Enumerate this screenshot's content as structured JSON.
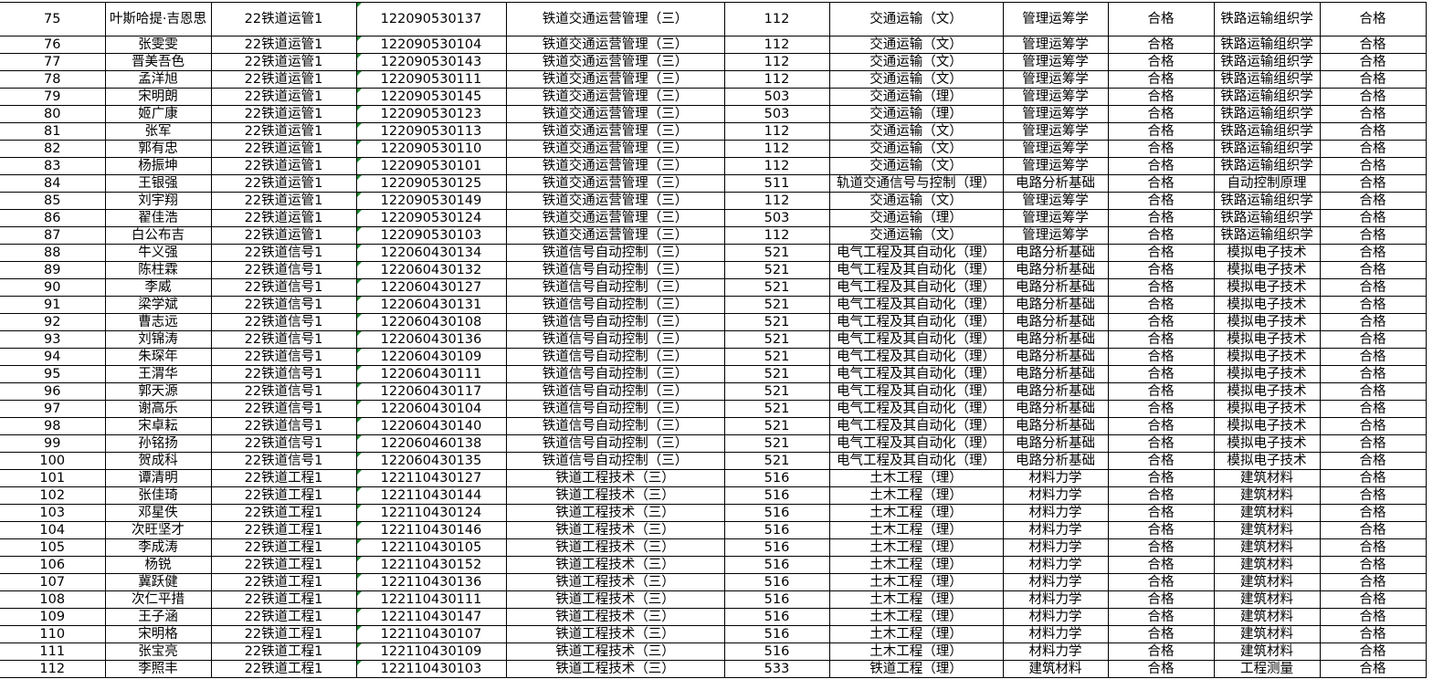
{
  "colors": {
    "grid": "#000000",
    "text_indicator": "#1a8a2a"
  },
  "rows": [
    [
      "75",
      "叶斯哈提·吉恩思",
      "22铁道运管1",
      "122090530137",
      "铁道交通运营管理（三）",
      "112",
      "交通运输（文）",
      "管理运筹学",
      "合格",
      "铁路运输组织学",
      "合格"
    ],
    [
      "76",
      "张雯雯",
      "22铁道运管1",
      "122090530104",
      "铁道交通运营管理（三）",
      "112",
      "交通运输（文）",
      "管理运筹学",
      "合格",
      "铁路运输组织学",
      "合格"
    ],
    [
      "77",
      "晋美吾色",
      "22铁道运管1",
      "122090530143",
      "铁道交通运营管理（三）",
      "112",
      "交通运输（文）",
      "管理运筹学",
      "合格",
      "铁路运输组织学",
      "合格"
    ],
    [
      "78",
      "孟洋旭",
      "22铁道运管1",
      "122090530111",
      "铁道交通运营管理（三）",
      "112",
      "交通运输（文）",
      "管理运筹学",
      "合格",
      "铁路运输组织学",
      "合格"
    ],
    [
      "79",
      "宋明朗",
      "22铁道运管1",
      "122090530145",
      "铁道交通运营管理（三）",
      "503",
      "交通运输（理）",
      "管理运筹学",
      "合格",
      "铁路运输组织学",
      "合格"
    ],
    [
      "80",
      "姬广康",
      "22铁道运管1",
      "122090530123",
      "铁道交通运营管理（三）",
      "503",
      "交通运输（理）",
      "管理运筹学",
      "合格",
      "铁路运输组织学",
      "合格"
    ],
    [
      "81",
      "张军",
      "22铁道运管1",
      "122090530113",
      "铁道交通运营管理（三）",
      "112",
      "交通运输（文）",
      "管理运筹学",
      "合格",
      "铁路运输组织学",
      "合格"
    ],
    [
      "82",
      "郭有忠",
      "22铁道运管1",
      "122090530110",
      "铁道交通运营管理（三）",
      "112",
      "交通运输（文）",
      "管理运筹学",
      "合格",
      "铁路运输组织学",
      "合格"
    ],
    [
      "83",
      "杨振坤",
      "22铁道运管1",
      "122090530101",
      "铁道交通运营管理（三）",
      "112",
      "交通运输（文）",
      "管理运筹学",
      "合格",
      "铁路运输组织学",
      "合格"
    ],
    [
      "84",
      "王银强",
      "22铁道运管1",
      "122090530125",
      "铁道交通运营管理（三）",
      "511",
      "轨道交通信号与控制（理）",
      "电路分析基础",
      "合格",
      "自动控制原理",
      "合格"
    ],
    [
      "85",
      "刘宇翔",
      "22铁道运管1",
      "122090530149",
      "铁道交通运营管理（三）",
      "112",
      "交通运输（文）",
      "管理运筹学",
      "合格",
      "铁路运输组织学",
      "合格"
    ],
    [
      "86",
      "翟佳浩",
      "22铁道运管1",
      "122090530124",
      "铁道交通运营管理（三）",
      "503",
      "交通运输（理）",
      "管理运筹学",
      "合格",
      "铁路运输组织学",
      "合格"
    ],
    [
      "87",
      "白公布吉",
      "22铁道运管1",
      "122090530103",
      "铁道交通运营管理（三）",
      "112",
      "交通运输（文）",
      "管理运筹学",
      "合格",
      "铁路运输组织学",
      "合格"
    ],
    [
      "88",
      "牛义强",
      "22铁道信号1",
      "122060430134",
      "铁道信号自动控制（三）",
      "521",
      "电气工程及其自动化（理）",
      "电路分析基础",
      "合格",
      "模拟电子技术",
      "合格"
    ],
    [
      "89",
      "陈柱霖",
      "22铁道信号1",
      "122060430132",
      "铁道信号自动控制（三）",
      "521",
      "电气工程及其自动化（理）",
      "电路分析基础",
      "合格",
      "模拟电子技术",
      "合格"
    ],
    [
      "90",
      "李威",
      "22铁道信号1",
      "122060430127",
      "铁道信号自动控制（三）",
      "521",
      "电气工程及其自动化（理）",
      "电路分析基础",
      "合格",
      "模拟电子技术",
      "合格"
    ],
    [
      "91",
      "梁学斌",
      "22铁道信号1",
      "122060430131",
      "铁道信号自动控制（三）",
      "521",
      "电气工程及其自动化（理）",
      "电路分析基础",
      "合格",
      "模拟电子技术",
      "合格"
    ],
    [
      "92",
      "曹志远",
      "22铁道信号1",
      "122060430108",
      "铁道信号自动控制（三）",
      "521",
      "电气工程及其自动化（理）",
      "电路分析基础",
      "合格",
      "模拟电子技术",
      "合格"
    ],
    [
      "93",
      "刘锦涛",
      "22铁道信号1",
      "122060430136",
      "铁道信号自动控制（三）",
      "521",
      "电气工程及其自动化（理）",
      "电路分析基础",
      "合格",
      "模拟电子技术",
      "合格"
    ],
    [
      "94",
      "朱琛年",
      "22铁道信号1",
      "122060430109",
      "铁道信号自动控制（三）",
      "521",
      "电气工程及其自动化（理）",
      "电路分析基础",
      "合格",
      "模拟电子技术",
      "合格"
    ],
    [
      "95",
      "王渭华",
      "22铁道信号1",
      "122060430111",
      "铁道信号自动控制（三）",
      "521",
      "电气工程及其自动化（理）",
      "电路分析基础",
      "合格",
      "模拟电子技术",
      "合格"
    ],
    [
      "96",
      "郭天源",
      "22铁道信号1",
      "122060430117",
      "铁道信号自动控制（三）",
      "521",
      "电气工程及其自动化（理）",
      "电路分析基础",
      "合格",
      "模拟电子技术",
      "合格"
    ],
    [
      "97",
      "谢高乐",
      "22铁道信号1",
      "122060430104",
      "铁道信号自动控制（三）",
      "521",
      "电气工程及其自动化（理）",
      "电路分析基础",
      "合格",
      "模拟电子技术",
      "合格"
    ],
    [
      "98",
      "宋卓耘",
      "22铁道信号1",
      "122060430140",
      "铁道信号自动控制（三）",
      "521",
      "电气工程及其自动化（理）",
      "电路分析基础",
      "合格",
      "模拟电子技术",
      "合格"
    ],
    [
      "99",
      "孙铭扬",
      "22铁道信号1",
      "122060460138",
      "铁道信号自动控制（三）",
      "521",
      "电气工程及其自动化（理）",
      "电路分析基础",
      "合格",
      "模拟电子技术",
      "合格"
    ],
    [
      "100",
      "贺成科",
      "22铁道信号1",
      "122060430135",
      "铁道信号自动控制（三）",
      "521",
      "电气工程及其自动化（理）",
      "电路分析基础",
      "合格",
      "模拟电子技术",
      "合格"
    ],
    [
      "101",
      "谭清明",
      "22铁道工程1",
      "122110430127",
      "铁道工程技术（三）",
      "516",
      "土木工程（理）",
      "材料力学",
      "合格",
      "建筑材料",
      "合格"
    ],
    [
      "102",
      "张佳琦",
      "22铁道工程1",
      "122110430144",
      "铁道工程技术（三）",
      "516",
      "土木工程（理）",
      "材料力学",
      "合格",
      "建筑材料",
      "合格"
    ],
    [
      "103",
      "邓星佚",
      "22铁道工程1",
      "122110430124",
      "铁道工程技术（三）",
      "516",
      "土木工程（理）",
      "材料力学",
      "合格",
      "建筑材料",
      "合格"
    ],
    [
      "104",
      "次旺坚才",
      "22铁道工程1",
      "122110430146",
      "铁道工程技术（三）",
      "516",
      "土木工程（理）",
      "材料力学",
      "合格",
      "建筑材料",
      "合格"
    ],
    [
      "105",
      "李成涛",
      "22铁道工程1",
      "122110430105",
      "铁道工程技术（三）",
      "516",
      "土木工程（理）",
      "材料力学",
      "合格",
      "建筑材料",
      "合格"
    ],
    [
      "106",
      "杨锐",
      "22铁道工程1",
      "122110430152",
      "铁道工程技术（三）",
      "516",
      "土木工程（理）",
      "材料力学",
      "合格",
      "建筑材料",
      "合格"
    ],
    [
      "107",
      "冀跃健",
      "22铁道工程1",
      "122110430136",
      "铁道工程技术（三）",
      "516",
      "土木工程（理）",
      "材料力学",
      "合格",
      "建筑材料",
      "合格"
    ],
    [
      "108",
      "次仁平措",
      "22铁道工程1",
      "122110430111",
      "铁道工程技术（三）",
      "516",
      "土木工程（理）",
      "材料力学",
      "合格",
      "建筑材料",
      "合格"
    ],
    [
      "109",
      "王子涵",
      "22铁道工程1",
      "122110430147",
      "铁道工程技术（三）",
      "516",
      "土木工程（理）",
      "材料力学",
      "合格",
      "建筑材料",
      "合格"
    ],
    [
      "110",
      "宋明格",
      "22铁道工程1",
      "122110430107",
      "铁道工程技术（三）",
      "516",
      "土木工程（理）",
      "材料力学",
      "合格",
      "建筑材料",
      "合格"
    ],
    [
      "111",
      "张宝亮",
      "22铁道工程1",
      "122110430109",
      "铁道工程技术（三）",
      "516",
      "土木工程（理）",
      "材料力学",
      "合格",
      "建筑材料",
      "合格"
    ],
    [
      "112",
      "李照丰",
      "22铁道工程1",
      "122110430103",
      "铁道工程技术（三）",
      "533",
      "铁道工程（理）",
      "建筑材料",
      "合格",
      "工程测量",
      "合格"
    ]
  ]
}
